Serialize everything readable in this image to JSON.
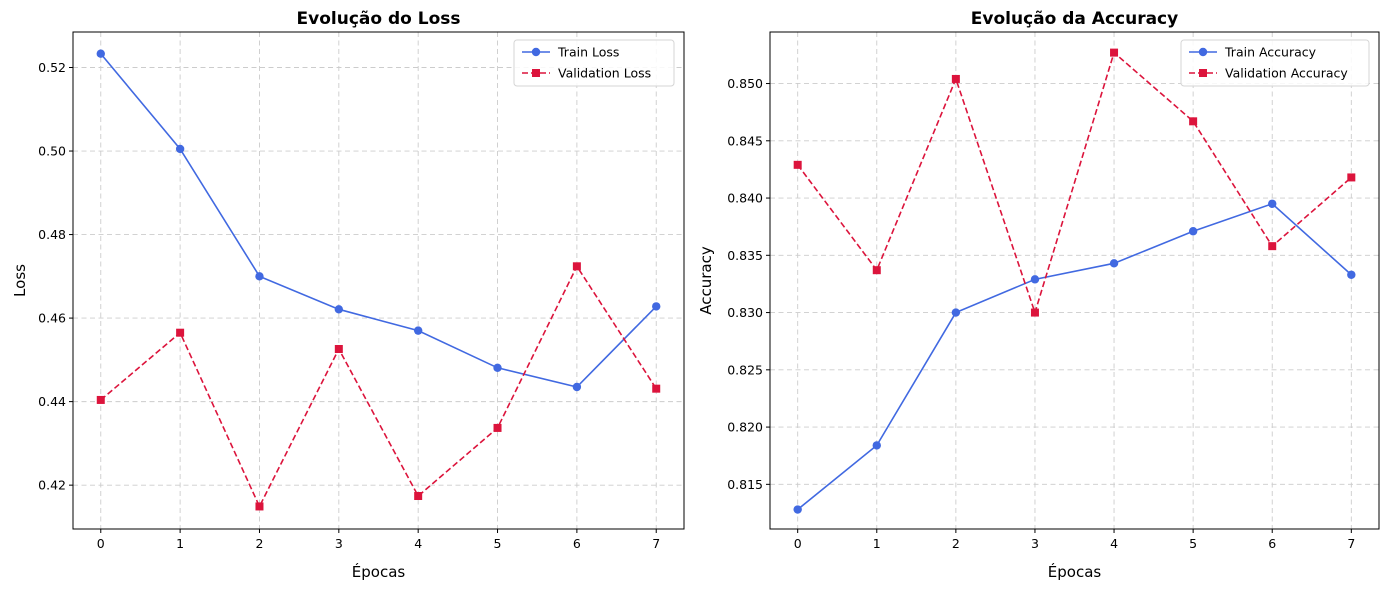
{
  "chart_data": [
    {
      "type": "line",
      "title": "Evolução do Loss",
      "xlabel": "Épocas",
      "ylabel": "Loss",
      "x": [
        0,
        1,
        2,
        3,
        4,
        5,
        6,
        7
      ],
      "xticks": [
        "0",
        "1",
        "2",
        "3",
        "4",
        "5",
        "6",
        "7"
      ],
      "xlim": [
        -0.35,
        7.35
      ],
      "ylim": [
        0.4095,
        0.5285
      ],
      "yticks": [
        0.42,
        0.44,
        0.46,
        0.48,
        0.5,
        0.52
      ],
      "ytick_labels": [
        "0.42",
        "0.44",
        "0.46",
        "0.48",
        "0.50",
        "0.52"
      ],
      "grid": true,
      "legend": "upper right",
      "series": [
        {
          "name": "Train Loss",
          "color": "#4169e1",
          "style": "solid",
          "marker": "circle",
          "values": [
            0.5233,
            0.5005,
            0.47,
            0.4621,
            0.457,
            0.4481,
            0.4435,
            0.4628
          ]
        },
        {
          "name": "Validation Loss",
          "color": "#dc143c",
          "style": "dashed",
          "marker": "square",
          "values": [
            0.4404,
            0.4565,
            0.4149,
            0.4526,
            0.4174,
            0.4337,
            0.4724,
            0.4431
          ]
        }
      ]
    },
    {
      "type": "line",
      "title": "Evolução da Accuracy",
      "xlabel": "Épocas",
      "ylabel": "Accuracy",
      "x": [
        0,
        1,
        2,
        3,
        4,
        5,
        6,
        7
      ],
      "xticks": [
        "0",
        "1",
        "2",
        "3",
        "4",
        "5",
        "6",
        "7"
      ],
      "xlim": [
        -0.35,
        7.35
      ],
      "ylim": [
        0.8111,
        0.8545
      ],
      "yticks": [
        0.815,
        0.82,
        0.825,
        0.83,
        0.835,
        0.84,
        0.845,
        0.85
      ],
      "ytick_labels": [
        "0.815",
        "0.820",
        "0.825",
        "0.830",
        "0.835",
        "0.840",
        "0.845",
        "0.850"
      ],
      "grid": true,
      "legend": "upper right",
      "series": [
        {
          "name": "Train Accuracy",
          "color": "#4169e1",
          "style": "solid",
          "marker": "circle",
          "values": [
            0.8128,
            0.8184,
            0.83,
            0.8329,
            0.8343,
            0.8371,
            0.8395,
            0.8333
          ]
        },
        {
          "name": "Validation Accuracy",
          "color": "#dc143c",
          "style": "dashed",
          "marker": "square",
          "values": [
            0.8429,
            0.8337,
            0.8504,
            0.83,
            0.8527,
            0.8467,
            0.8358,
            0.8418
          ]
        }
      ]
    }
  ]
}
